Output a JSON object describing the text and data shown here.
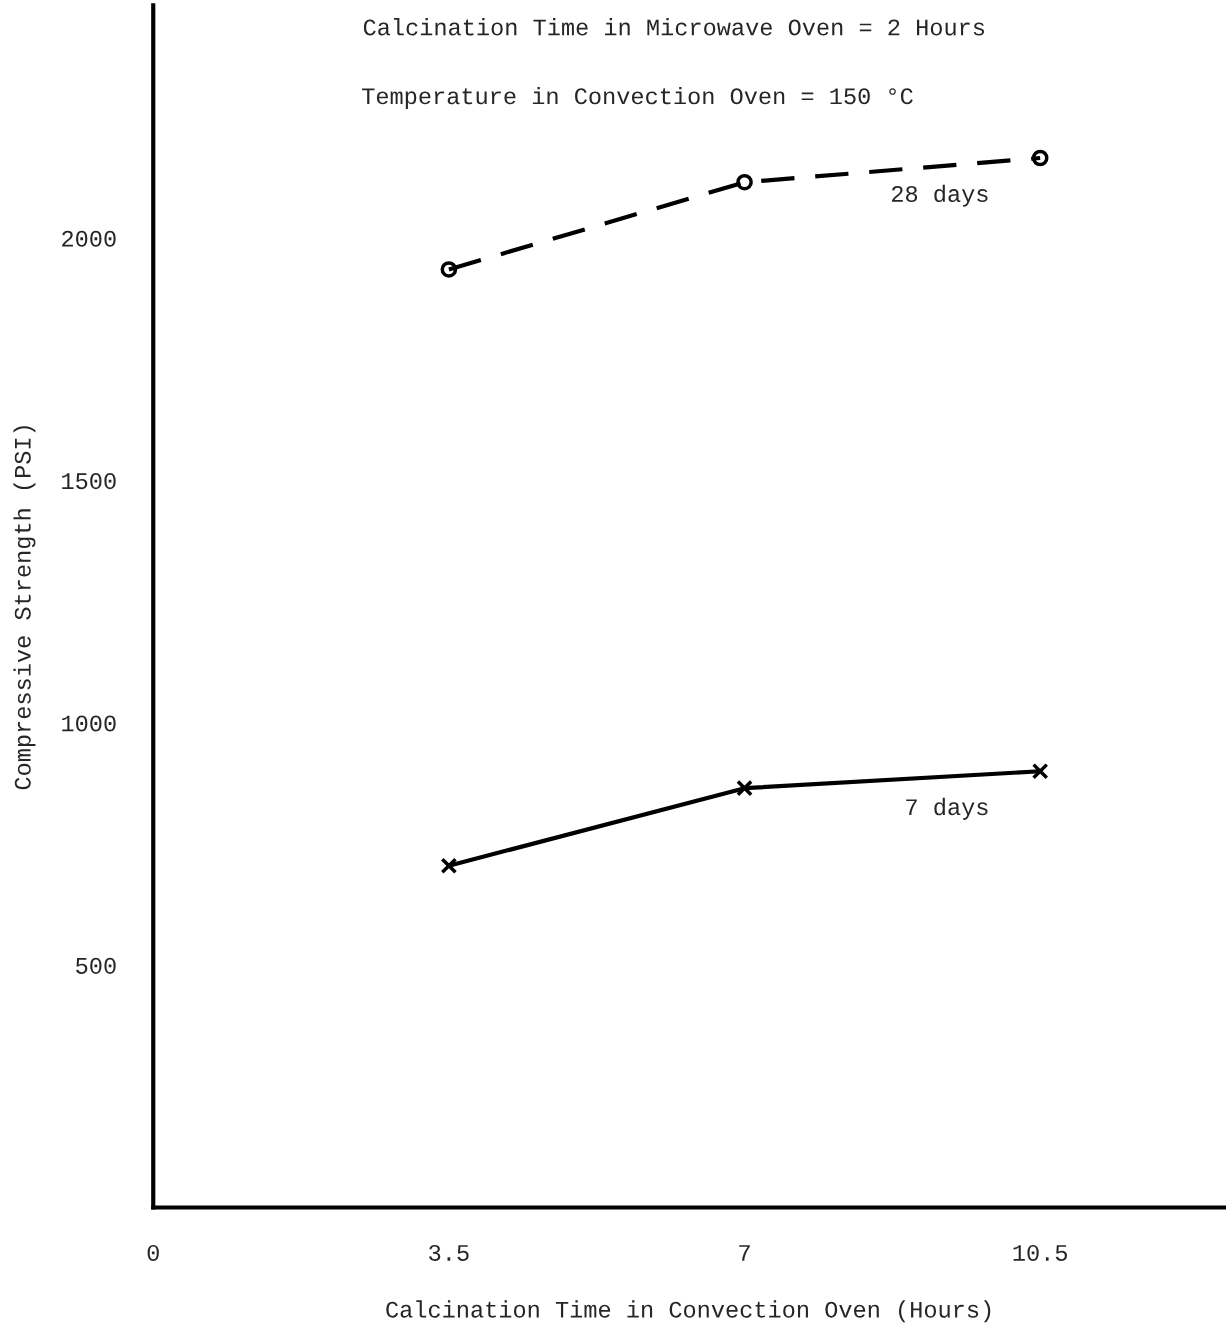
{
  "chart_data": {
    "type": "line",
    "title": "Calcination Time in Microwave Oven = 2 Hours",
    "subtitle": "Temperature in Convection Oven = 150 °C",
    "xlabel": "Calcination Time in Convection Oven (Hours)",
    "ylabel": "Compressive Strength (PSI)",
    "x": [
      3.5,
      7,
      10.5
    ],
    "series": [
      {
        "name": "28 days",
        "color": "#000000",
        "values": [
          1935,
          2115,
          2165
        ],
        "marker": "circle",
        "line_style": "dashed"
      },
      {
        "name": "7 days",
        "color": "#000000",
        "values": [
          705,
          865,
          900
        ],
        "marker": "cross",
        "line_style": "solid"
      }
    ],
    "xlim": [
      0,
      12.7
    ],
    "ylim": [
      0,
      2480
    ],
    "xticks": [
      0,
      3.5,
      7,
      10.5
    ],
    "yticks": [
      500,
      1000,
      1500,
      2000
    ],
    "grid": false,
    "legend": false
  }
}
